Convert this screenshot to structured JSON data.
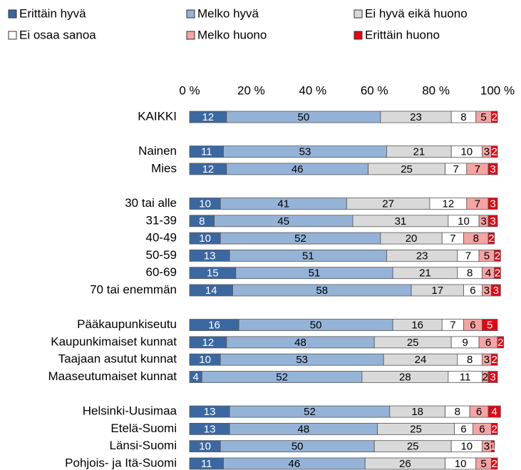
{
  "chart_data": {
    "type": "stacked-bar-horizontal",
    "categories": [
      "KAIKKI",
      null,
      "Nainen",
      "Mies",
      null,
      "30 tai alle",
      "31-39",
      "40-49",
      "50-59",
      "60-69",
      "70 tai enemmän",
      null,
      "Pääkaupunkiseutu",
      "Kaupunkimaiset kunnat",
      "Taajaan asutut kunnat",
      "Maaseutumaiset kunnat",
      null,
      "Helsinki-Uusimaa",
      "Etelä-Suomi",
      "Länsi-Suomi",
      "Pohjois- ja Itä-Suomi"
    ],
    "series": [
      {
        "name": "Erittäin hyvä",
        "color": "#3b68a1",
        "values": [
          12,
          null,
          11,
          12,
          null,
          10,
          8,
          10,
          13,
          15,
          14,
          null,
          16,
          12,
          10,
          4,
          null,
          13,
          13,
          10,
          11
        ]
      },
      {
        "name": "Melko hyvä",
        "color": "#95b3d7",
        "values": [
          50,
          null,
          53,
          46,
          null,
          41,
          45,
          52,
          51,
          51,
          58,
          null,
          50,
          48,
          53,
          52,
          null,
          52,
          48,
          50,
          46
        ]
      },
      {
        "name": "Ei hyvä eikä huono",
        "color": "#d9d9d9",
        "values": [
          23,
          null,
          21,
          25,
          null,
          27,
          31,
          20,
          23,
          21,
          17,
          null,
          16,
          25,
          24,
          28,
          null,
          18,
          25,
          25,
          26
        ]
      },
      {
        "name": "Ei osaa sanoa",
        "color": "#ffffff",
        "values": [
          8,
          null,
          10,
          7,
          null,
          12,
          10,
          7,
          7,
          8,
          6,
          null,
          7,
          9,
          8,
          11,
          null,
          8,
          6,
          10,
          10
        ]
      },
      {
        "name": "Melko huono",
        "color": "#f5a3a3",
        "values": [
          5,
          null,
          3,
          7,
          null,
          7,
          3,
          8,
          5,
          4,
          3,
          null,
          6,
          6,
          3,
          2,
          null,
          6,
          6,
          3,
          5
        ]
      },
      {
        "name": "Erittäin huono",
        "color": "#e30613",
        "values": [
          2,
          null,
          2,
          3,
          null,
          3,
          3,
          2,
          2,
          2,
          3,
          null,
          5,
          2,
          2,
          3,
          null,
          4,
          2,
          1,
          2
        ]
      }
    ],
    "xlim": [
      0,
      100
    ],
    "xticks": [
      {
        "value": 0,
        "label": "0 %"
      },
      {
        "value": 20,
        "label": "20 %"
      },
      {
        "value": 40,
        "label": "40 %"
      },
      {
        "value": 60,
        "label": "60 %"
      },
      {
        "value": 80,
        "label": "80 %"
      },
      {
        "value": 100,
        "label": "100 %"
      }
    ],
    "legend": "top"
  }
}
